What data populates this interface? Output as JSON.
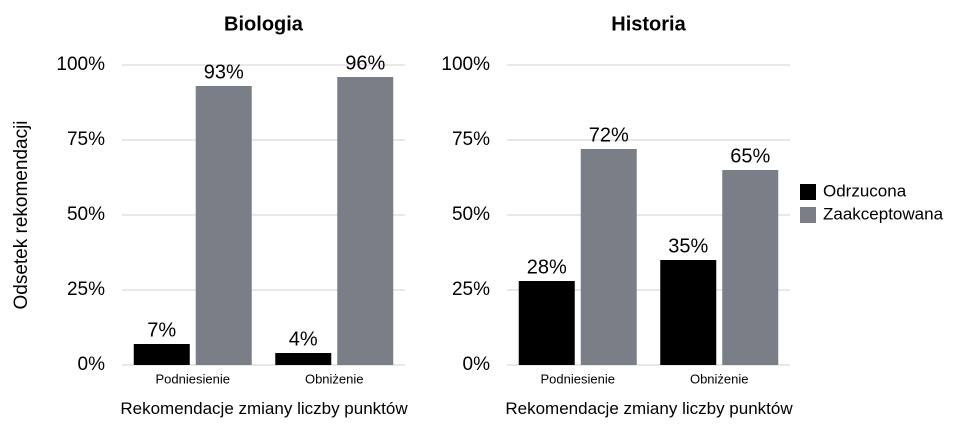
{
  "chart_data": [
    {
      "type": "bar",
      "title": "Biologia",
      "ylabel": "Odsetek rekomendacji",
      "xlabel": "Rekomendacje zmiany liczby punktów",
      "categories": [
        "Podniesienie",
        "Obniżenie"
      ],
      "series": [
        {
          "color": "#000000",
          "values": [
            7,
            4
          ],
          "value_labels": [
            "7%",
            "4%"
          ]
        },
        {
          "color": "#7a7f87",
          "values": [
            93,
            96
          ],
          "value_labels": [
            "93%",
            "96%"
          ]
        }
      ],
      "ylim": [
        0,
        100
      ],
      "yticks": [
        {
          "value": 0,
          "label": "0%"
        },
        {
          "value": 25,
          "label": "25%"
        },
        {
          "value": 50,
          "label": "50%"
        },
        {
          "value": 75,
          "label": "75%"
        },
        {
          "value": 100,
          "label": "100%"
        }
      ],
      "grid": true
    },
    {
      "type": "bar",
      "title": "Historia",
      "xlabel": "Rekomendacje zmiany liczby punktów",
      "categories": [
        "Podniesienie",
        "Obniżenie"
      ],
      "series": [
        {
          "name": "Odrzucona",
          "color": "#000000",
          "values": [
            28,
            35
          ],
          "value_labels": [
            "28%",
            "35%"
          ]
        },
        {
          "name": "Zaakceptowana",
          "color": "#7a7f87",
          "values": [
            72,
            65
          ],
          "value_labels": [
            "72%",
            "65%"
          ]
        }
      ],
      "ylim": [
        0,
        100
      ],
      "yticks": [
        {
          "value": 0,
          "label": "0%"
        },
        {
          "value": 25,
          "label": "25%"
        },
        {
          "value": 50,
          "label": "50%"
        },
        {
          "value": 75,
          "label": "75%"
        },
        {
          "value": 100,
          "label": "100%"
        }
      ],
      "grid": true,
      "legend": "right"
    }
  ]
}
